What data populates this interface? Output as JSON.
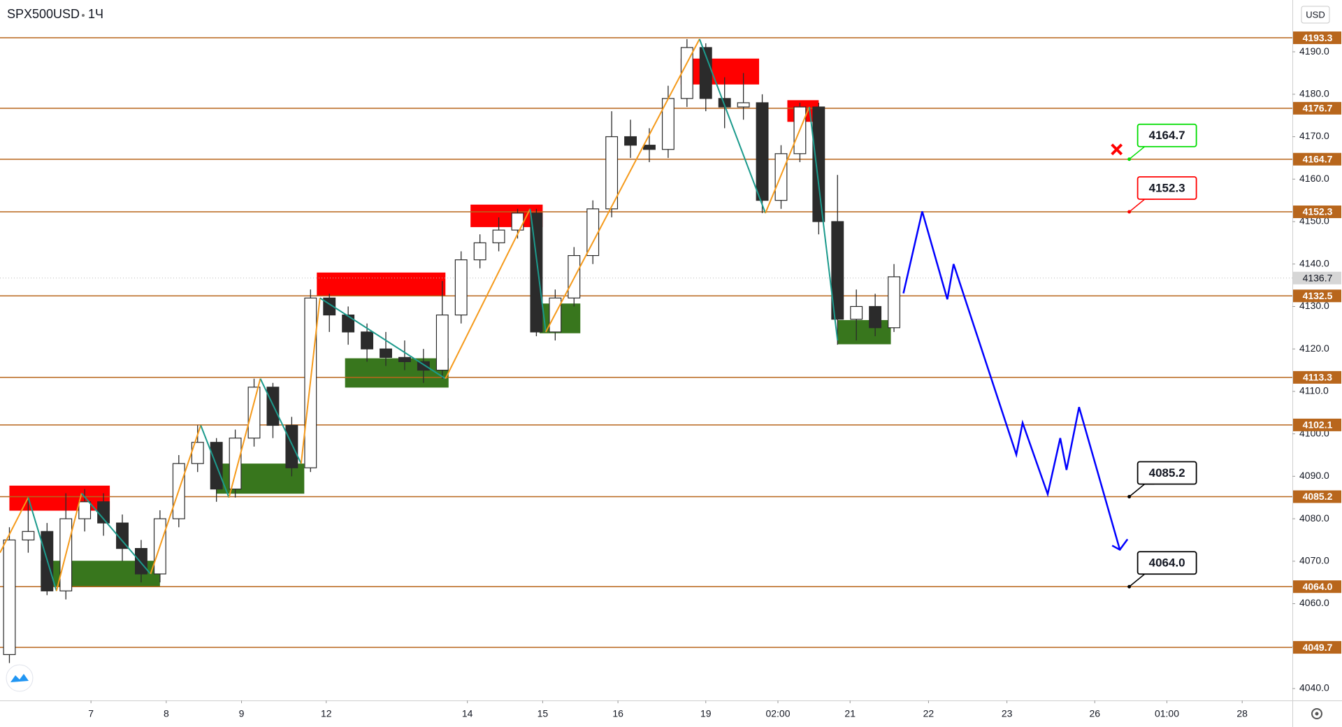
{
  "header": {
    "symbol": "SPX500USD",
    "interval": "1Ч",
    "currency": "USD"
  },
  "chart_data": {
    "type": "candlestick",
    "x": [
      3,
      9,
      15,
      21,
      27,
      33,
      39,
      45,
      51,
      57,
      63,
      69,
      75,
      81,
      87,
      93,
      99,
      105,
      111,
      117,
      123,
      129,
      135,
      141,
      147,
      153,
      159,
      165,
      171,
      177,
      183,
      189,
      195,
      201,
      207,
      213,
      219,
      225,
      231,
      237,
      243,
      249,
      255,
      261,
      267,
      273,
      279,
      285
    ],
    "open": [
      4048,
      4075,
      4077,
      4063,
      4080,
      4084,
      4079,
      4073,
      4067,
      4080,
      4093,
      4098,
      4087,
      4099,
      4111,
      4102,
      4092,
      4132,
      4128,
      4124,
      4120,
      4118,
      4117,
      4115,
      4128,
      4141,
      4145,
      4148,
      4152,
      4124,
      4132,
      4142,
      4153,
      4170,
      4168,
      4167,
      4179,
      4191,
      4179,
      4177,
      4178,
      4155,
      4166,
      4177,
      4150,
      4127,
      4130,
      4125
    ],
    "high": [
      4078,
      4085,
      4079,
      4086,
      4087,
      4086,
      4081,
      4075,
      4082,
      4095,
      4102,
      4099,
      4101,
      4113,
      4112,
      4104,
      4134,
      4133,
      4130,
      4126,
      4124,
      4122,
      4120,
      4136,
      4143,
      4147,
      4151,
      4153,
      4153,
      4134,
      4144,
      4155,
      4176,
      4174,
      4172,
      4182,
      4193,
      4192,
      4184,
      4185,
      4180,
      4168,
      4178,
      4178,
      4161,
      4134,
      4133,
      4140
    ],
    "low": [
      4046,
      4072,
      4062,
      4061,
      4077,
      4076,
      4070,
      4065,
      4065,
      4078,
      4091,
      4084,
      4085,
      4097,
      4099,
      4090,
      4091,
      4124,
      4121,
      4117,
      4116,
      4115,
      4112,
      4113,
      4126,
      4139,
      4143,
      4146,
      4123,
      4122,
      4130,
      4140,
      4151,
      4165,
      4164,
      4165,
      4177,
      4176,
      4172,
      4174,
      4152,
      4153,
      4164,
      4147,
      4121,
      4122,
      4123,
      4124
    ],
    "close": [
      4075,
      4077,
      4063,
      4080,
      4084,
      4079,
      4073,
      4067,
      4080,
      4093,
      4098,
      4087,
      4099,
      4111,
      4102,
      4092,
      4132,
      4128,
      4124,
      4120,
      4118,
      4117,
      4115,
      4128,
      4141,
      4145,
      4148,
      4152,
      4124,
      4132,
      4142,
      4153,
      4170,
      4168,
      4167,
      4179,
      4191,
      4179,
      4177,
      4178,
      4155,
      4166,
      4177,
      4150,
      4127,
      4130,
      4125,
      4137
    ],
    "up_color": "#ffffff",
    "down_color": "#2b2b2b",
    "wick_color": "#2b2b2b",
    "xlim": [
      0,
      412
    ],
    "ylim": [
      4037.2,
      4202.2
    ],
    "xticks": [
      {
        "value": 29,
        "label": "7"
      },
      {
        "value": 53,
        "label": "8"
      },
      {
        "value": 77,
        "label": "9"
      },
      {
        "value": 104,
        "label": "12"
      },
      {
        "value": 149,
        "label": "14"
      },
      {
        "value": 173,
        "label": "15"
      },
      {
        "value": 197,
        "label": "16"
      },
      {
        "value": 225,
        "label": "19"
      },
      {
        "value": 248,
        "label": "02:00"
      },
      {
        "value": 271,
        "label": "21"
      },
      {
        "value": 296,
        "label": "22"
      },
      {
        "value": 321,
        "label": "23"
      },
      {
        "value": 349,
        "label": "26"
      },
      {
        "value": 372,
        "label": "01:00"
      },
      {
        "value": 396,
        "label": "28"
      }
    ],
    "yticks": [
      {
        "value": 4040,
        "label": "4040.0"
      },
      {
        "value": 4050,
        "label": "4050.0"
      },
      {
        "value": 4060,
        "label": "4060.0"
      },
      {
        "value": 4070,
        "label": "4070.0"
      },
      {
        "value": 4080,
        "label": "4080.0"
      },
      {
        "value": 4090,
        "label": "4090.0"
      },
      {
        "value": 4100,
        "label": "4100.0"
      },
      {
        "value": 4110,
        "label": "4110.0"
      },
      {
        "value": 4120,
        "label": "4120.0"
      },
      {
        "value": 4130,
        "label": "4130.0"
      },
      {
        "value": 4140,
        "label": "4140.0"
      },
      {
        "value": 4150,
        "label": "4150.0"
      },
      {
        "value": 4160,
        "label": "4160.0"
      },
      {
        "value": 4170,
        "label": "4170.0"
      },
      {
        "value": 4180,
        "label": "4180.0"
      },
      {
        "value": 4190,
        "label": "4190.0"
      }
    ],
    "levels": [
      4193.3,
      4176.7,
      4164.7,
      4152.3,
      4132.5,
      4113.3,
      4102.1,
      4085.2,
      {
        "value": 4064,
        "label": "4064.0"
      },
      4049.7
    ],
    "level_color": "#b8661c",
    "last_price": 4136.7,
    "zones": [
      {
        "kind": "supply",
        "x": [
          3,
          35
        ],
        "y": [
          4081.9,
          4087.8
        ]
      },
      {
        "kind": "demand",
        "x": [
          13,
          51
        ],
        "y": [
          4064.0,
          4070.1
        ]
      },
      {
        "kind": "demand",
        "x": [
          69,
          97
        ],
        "y": [
          4085.9,
          4093.0
        ]
      },
      {
        "kind": "supply",
        "x": [
          101,
          142
        ],
        "y": [
          4132.5,
          4138.0
        ]
      },
      {
        "kind": "demand",
        "x": [
          110,
          143
        ],
        "y": [
          4110.9,
          4117.8
        ]
      },
      {
        "kind": "supply",
        "x": [
          150,
          173
        ],
        "y": [
          4148.7,
          4154.0
        ]
      },
      {
        "kind": "demand",
        "x": [
          172,
          185
        ],
        "y": [
          4123.7,
          4130.7
        ]
      },
      {
        "kind": "supply",
        "x": [
          217,
          242
        ],
        "y": [
          4182.3,
          4188.4
        ]
      },
      {
        "kind": "supply",
        "x": [
          251,
          261
        ],
        "y": [
          4173.5,
          4178.6
        ]
      },
      {
        "kind": "demand",
        "x": [
          267,
          284
        ],
        "y": [
          4121.1,
          4126.8
        ]
      }
    ],
    "supply_color": "#ff0000",
    "demand_color": "#38761d",
    "zigzag": {
      "x": [
        0,
        9,
        18,
        26,
        48,
        64,
        73,
        83,
        96,
        102,
        142,
        169,
        174,
        223,
        244,
        258,
        267
      ],
      "y": [
        4072,
        4085,
        4063,
        4086,
        4067,
        4102,
        4085,
        4113,
        4093,
        4132,
        4113,
        4153,
        4124,
        4193,
        4152,
        4177,
        4122
      ],
      "up_color": "#f59a1b",
      "down_color": "#1c9a8c"
    },
    "projection": {
      "x": [
        288,
        294,
        302,
        304,
        324,
        326,
        334,
        338,
        340,
        344,
        357
      ],
      "y": [
        4133.1,
        4152.4,
        4131.7,
        4140.0,
        4095.1,
        4102.6,
        4085.8,
        4099.0,
        4091.5,
        4106.3,
        4072.7
      ],
      "color": "#0000ff"
    },
    "stop_marker": {
      "x": 356,
      "y": 4167,
      "color": "#ff0000"
    },
    "callouts": [
      {
        "x": 360,
        "value": 4164.7,
        "color": "#00dd00"
      },
      {
        "x": 360,
        "value": 4152.3,
        "color": "#ff0000"
      },
      {
        "x": 360,
        "value": 4085.2,
        "color": "#000000"
      },
      {
        "x": 360,
        "value": 4064,
        "label": "4064.0",
        "color": "#000000"
      }
    ]
  }
}
